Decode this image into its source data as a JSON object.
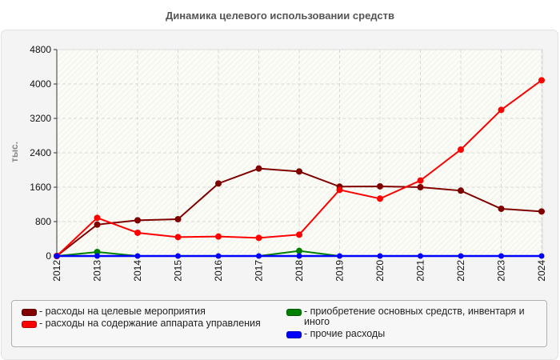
{
  "title": "Динамика целевого использовании средств",
  "chart_data": {
    "type": "line",
    "title": "Динамика целевого использовании средств",
    "xlabel": "",
    "ylabel": "тыс.",
    "ylim": [
      0,
      4800
    ],
    "yticks": [
      0,
      800,
      1600,
      2400,
      3200,
      4000,
      4800
    ],
    "grid": true,
    "legend_position": "bottom",
    "x": [
      "2012",
      "2013",
      "2014",
      "2015",
      "2016",
      "2017",
      "2018",
      "2019",
      "2020",
      "2021",
      "2022",
      "2023",
      "2024"
    ],
    "series": [
      {
        "name": "расходы на целевые мероприятия",
        "color": "#800000",
        "values": [
          0,
          730,
          830,
          856,
          1687,
          2034,
          1966,
          1613,
          1619,
          1600,
          1520,
          1098,
          1036
        ]
      },
      {
        "name": "расходы на содержание аппарата управления",
        "color": "#ff0000",
        "values": [
          0,
          887,
          540,
          440,
          453,
          422,
          496,
          1538,
          1334,
          1755,
          2474,
          3398,
          4087
        ]
      },
      {
        "name": "приобретение основных средств, инвентаря и иного",
        "color": "#008000",
        "values": [
          0,
          93,
          0,
          null,
          null,
          0,
          118,
          0,
          null,
          null,
          null,
          null,
          null
        ]
      },
      {
        "name": "прочие расходы",
        "color": "#0000ff",
        "values": [
          0,
          0,
          0,
          0,
          0,
          0,
          0,
          0,
          0,
          0,
          0,
          0,
          0
        ]
      }
    ]
  },
  "legend": {
    "items": [
      {
        "label": "- расходы на целевые мероприятия",
        "color": "#800000"
      },
      {
        "label": "- расходы на содержание аппарата управления",
        "color": "#ff0000"
      },
      {
        "label": "- приобретение основных средств, инвентаря и иного",
        "color": "#008000"
      },
      {
        "label": "- прочие расходы",
        "color": "#0000ff"
      }
    ]
  }
}
